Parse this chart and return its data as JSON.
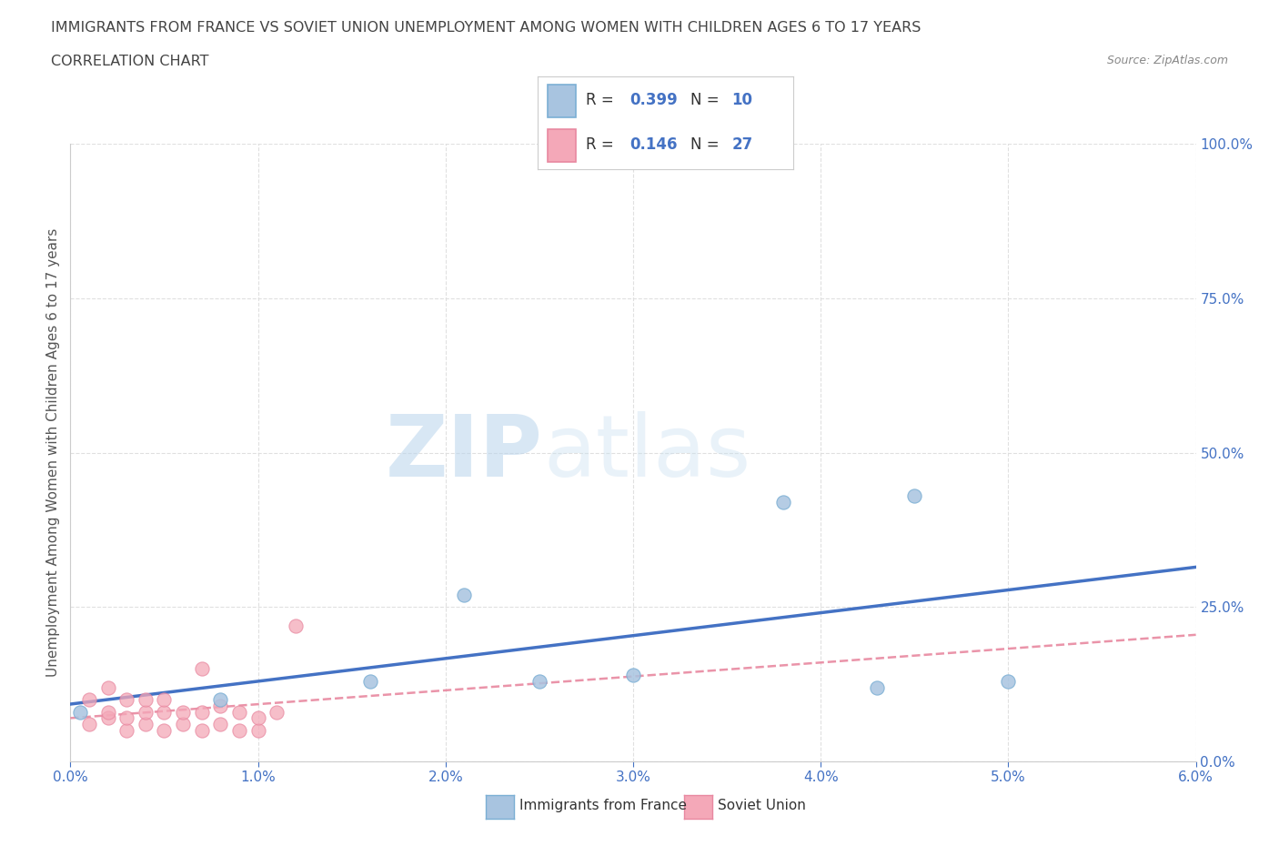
{
  "title_line1": "IMMIGRANTS FROM FRANCE VS SOVIET UNION UNEMPLOYMENT AMONG WOMEN WITH CHILDREN AGES 6 TO 17 YEARS",
  "title_line2": "CORRELATION CHART",
  "source_text": "Source: ZipAtlas.com",
  "ylabel": "Unemployment Among Women with Children Ages 6 to 17 years",
  "xlim": [
    0.0,
    0.06
  ],
  "ylim": [
    0.0,
    1.0
  ],
  "xtick_labels": [
    "0.0%",
    "1.0%",
    "2.0%",
    "3.0%",
    "4.0%",
    "5.0%",
    "6.0%"
  ],
  "xtick_vals": [
    0.0,
    0.01,
    0.02,
    0.03,
    0.04,
    0.05,
    0.06
  ],
  "ytick_labels": [
    "0.0%",
    "25.0%",
    "50.0%",
    "75.0%",
    "100.0%"
  ],
  "ytick_vals": [
    0.0,
    0.25,
    0.5,
    0.75,
    1.0
  ],
  "france_scatter_x": [
    0.0005,
    0.008,
    0.016,
    0.021,
    0.025,
    0.03,
    0.038,
    0.043,
    0.045,
    0.05
  ],
  "france_scatter_y": [
    0.08,
    0.1,
    0.13,
    0.27,
    0.13,
    0.14,
    0.42,
    0.12,
    0.43,
    0.13
  ],
  "soviet_scatter_x": [
    0.001,
    0.001,
    0.002,
    0.002,
    0.002,
    0.003,
    0.003,
    0.003,
    0.004,
    0.004,
    0.004,
    0.005,
    0.005,
    0.005,
    0.006,
    0.006,
    0.007,
    0.007,
    0.007,
    0.008,
    0.008,
    0.009,
    0.009,
    0.01,
    0.01,
    0.011,
    0.012
  ],
  "soviet_scatter_y": [
    0.06,
    0.1,
    0.07,
    0.08,
    0.12,
    0.05,
    0.07,
    0.1,
    0.06,
    0.08,
    0.1,
    0.05,
    0.08,
    0.1,
    0.06,
    0.08,
    0.05,
    0.08,
    0.15,
    0.06,
    0.09,
    0.05,
    0.08,
    0.05,
    0.07,
    0.08,
    0.22
  ],
  "france_r": 0.399,
  "france_n": 10,
  "soviet_r": 0.146,
  "soviet_n": 27,
  "france_scatter_color": "#a8c4e0",
  "france_scatter_edge": "#7bafd4",
  "soviet_scatter_color": "#f4a8b8",
  "soviet_scatter_edge": "#e888a0",
  "france_line_color": "#4472c4",
  "soviet_line_color": "#e888a0",
  "watermark_zip": "ZIP",
  "watermark_atlas": "atlas",
  "watermark_zip_color": "#c8dff0",
  "watermark_atlas_color": "#c8dff0",
  "background_color": "#ffffff",
  "grid_color": "#dddddd",
  "text_color_blue": "#4472c4",
  "title_color": "#444444"
}
